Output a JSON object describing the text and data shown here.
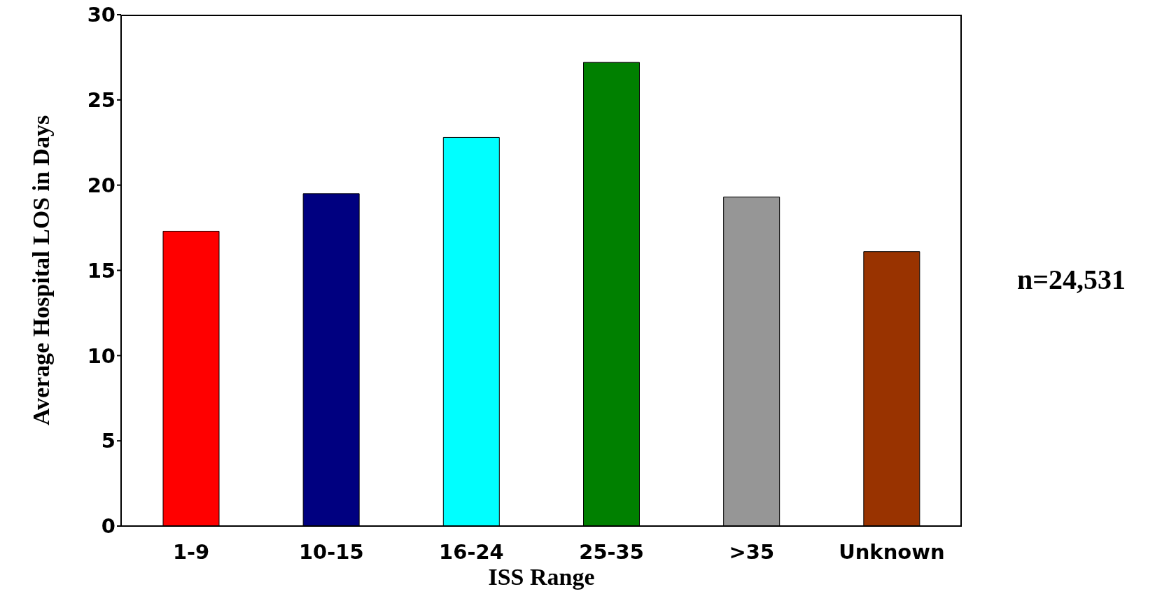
{
  "chart_data": {
    "type": "bar",
    "xlabel": "ISS Range",
    "ylabel": "Average Hospital LOS in Days",
    "categories": [
      "1-9",
      "10-15",
      "16-24",
      "25-35",
      ">35",
      "Unknown"
    ],
    "values": [
      17.3,
      19.5,
      22.8,
      27.2,
      19.3,
      16.1
    ],
    "colors": [
      "#ff0000",
      "#000080",
      "#00ffff",
      "#008000",
      "#969696",
      "#993300"
    ],
    "ylim": [
      0,
      30
    ],
    "yticks": [
      0,
      5,
      10,
      15,
      20,
      25,
      30
    ],
    "grid": false,
    "annotations": [
      "n=24,531"
    ]
  }
}
